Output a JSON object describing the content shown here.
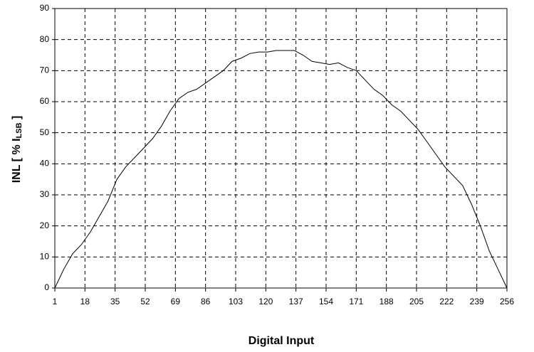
{
  "chart_data": {
    "type": "line",
    "xlabel": "Digital Input",
    "ylabel": {
      "text": "INL [ % I",
      "subscript": "LSB",
      "suffix": " ]"
    },
    "x": [
      1,
      6,
      11,
      16,
      21,
      26,
      31,
      36,
      41,
      46,
      51,
      56,
      61,
      66,
      71,
      76,
      81,
      86,
      91,
      96,
      101,
      106,
      111,
      116,
      121,
      126,
      131,
      136,
      141,
      146,
      151,
      156,
      161,
      166,
      171,
      176,
      181,
      186,
      191,
      196,
      201,
      206,
      211,
      216,
      221,
      226,
      231,
      236,
      241,
      246,
      251,
      256
    ],
    "series": [
      {
        "color": "#000000",
        "values": [
          0,
          6,
          11,
          14,
          18,
          23,
          28,
          35,
          39,
          42,
          45,
          48,
          52,
          57,
          61,
          63,
          64,
          66,
          68,
          70,
          73,
          74,
          75.5,
          76,
          76,
          76.5,
          76.5,
          76.5,
          75,
          73,
          72.5,
          72,
          72.5,
          71,
          70,
          67,
          64,
          62,
          59,
          57,
          54,
          51,
          47,
          43,
          39,
          36,
          33,
          27,
          20,
          12,
          6,
          0
        ]
      }
    ],
    "xlim": [
      1,
      256
    ],
    "xticks": [
      1,
      18,
      35,
      52,
      69,
      86,
      103,
      120,
      137,
      154,
      171,
      188,
      205,
      222,
      239,
      256
    ],
    "ylim": [
      0,
      90
    ],
    "yticks": [
      0,
      10,
      20,
      30,
      40,
      50,
      60,
      70,
      80,
      90
    ],
    "grid": true
  }
}
